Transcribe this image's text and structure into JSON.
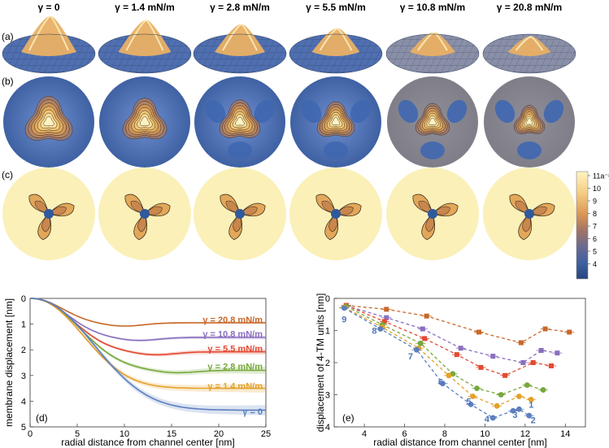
{
  "columns": [
    "γ = 0",
    "γ = 1.4 mN/m",
    "γ = 2.8 mN/m",
    "γ = 5.5 mN/m",
    "γ = 10.8 mN/m",
    "γ = 20.8 mN/m"
  ],
  "row_labels": [
    "(a)",
    "(b)",
    "(c)"
  ],
  "colorbar": {
    "ticks": [
      "11a⁻²",
      "10",
      "9",
      "8",
      "7",
      "6",
      "5",
      "4"
    ],
    "colors": [
      "#fff4c4",
      "#fbe3a4",
      "#f5cd82",
      "#ebb066",
      "#d99653",
      "#b07a5e",
      "#7c6f86",
      "#53699e",
      "#3b5f9f",
      "#2a4f8e"
    ]
  },
  "chart_data": [
    {
      "type": "line",
      "panel": "(d)",
      "xlabel": "radial distance from channel center  [nm]",
      "ylabel": "membrane displacement  [nm]",
      "xlim": [
        0,
        25
      ],
      "ylim": [
        5,
        0
      ],
      "xticks": [
        "0",
        "5",
        "10",
        "15",
        "20",
        "25"
      ],
      "yticks": [
        "0",
        "1",
        "2",
        "3",
        "4",
        "5"
      ],
      "series": [
        {
          "name": "γ = 20.8 mN/m",
          "color": "#c8682a",
          "r": 4.5,
          "plateau": 0.95,
          "bump": 0.13
        },
        {
          "name": "γ = 10.8 mN/m",
          "color": "#8a6fbf",
          "r": 5.2,
          "plateau": 1.52,
          "bump": 0.12
        },
        {
          "name": "γ = 5.5 mN/m",
          "color": "#e24a33",
          "r": 6.0,
          "plateau": 2.08,
          "bump": 0.12
        },
        {
          "name": "γ = 2.8 mN/m",
          "color": "#76a83a",
          "r": 7.0,
          "plateau": 2.8,
          "bump": 0.1
        },
        {
          "name": "γ = 1.4 mN/m",
          "color": "#e3a128",
          "r": 7.5,
          "plateau": 3.5,
          "bump": 0.0
        },
        {
          "name": "γ = 0",
          "color": "#5b7fbf",
          "r": 9.0,
          "plateau": 4.35,
          "bump": 0.0
        }
      ]
    },
    {
      "type": "scatter",
      "panel": "(e)",
      "xlabel": "radial distance from channel center  [nm]",
      "ylabel": "displacement of 4-TM units  [nm]",
      "xlim": [
        2.5,
        15
      ],
      "ylim": [
        4,
        0
      ],
      "xticks": [
        "4",
        "6",
        "8",
        "10",
        "12",
        "14"
      ],
      "yticks": [
        "0",
        "1",
        "2",
        "3",
        "4"
      ],
      "point_labels": [
        {
          "text": "9",
          "x": 3.0,
          "y": 0.65
        },
        {
          "text": "8",
          "x": 4.5,
          "y": 1.0
        },
        {
          "text": "7",
          "x": 6.3,
          "y": 1.8
        },
        {
          "text": "6",
          "x": 7.8,
          "y": 2.6
        },
        {
          "text": "5",
          "x": 9.2,
          "y": 3.2
        },
        {
          "text": "4",
          "x": 10.1,
          "y": 3.75
        },
        {
          "text": "3",
          "x": 11.5,
          "y": 3.62
        },
        {
          "text": "2",
          "x": 12.4,
          "y": 3.78
        },
        {
          "text": "1",
          "x": 12.3,
          "y": 3.3
        }
      ],
      "series": [
        {
          "name": "γ = 20.8 mN/m",
          "color": "#c8682a",
          "marker": "square",
          "x": [
            3.1,
            5.1,
            7.1,
            9.7,
            11.8,
            13.0,
            14.2
          ],
          "y": [
            0.22,
            0.34,
            0.55,
            1.05,
            1.38,
            0.95,
            1.05
          ]
        },
        {
          "name": "γ = 10.8 mN/m",
          "color": "#8a6fbf",
          "marker": "square",
          "x": [
            3.1,
            5.1,
            6.9,
            8.8,
            10.4,
            11.9,
            12.8,
            13.6
          ],
          "y": [
            0.23,
            0.6,
            0.95,
            1.55,
            1.8,
            2.0,
            1.62,
            1.7
          ]
        },
        {
          "name": "γ = 5.5 mN/m",
          "color": "#e24a33",
          "marker": "square",
          "x": [
            3.1,
            5.0,
            7.0,
            8.6,
            9.8,
            11.0,
            12.4,
            13.3
          ],
          "y": [
            0.22,
            0.72,
            1.25,
            1.75,
            2.15,
            2.4,
            2.0,
            2.1
          ]
        },
        {
          "name": "γ = 2.8 mN/m",
          "color": "#76a83a",
          "marker": "circle",
          "x": [
            3.1,
            4.9,
            6.8,
            8.4,
            9.6,
            10.8,
            12.1,
            12.9
          ],
          "y": [
            0.25,
            0.82,
            1.4,
            2.35,
            2.8,
            3.0,
            2.7,
            2.85
          ]
        },
        {
          "name": "γ = 1.4 mN/m",
          "color": "#e3a128",
          "marker": "circle",
          "x": [
            3.0,
            4.9,
            6.7,
            8.2,
            9.4,
            10.6,
            11.7,
            12.3
          ],
          "y": [
            0.28,
            0.9,
            1.55,
            2.4,
            3.05,
            3.35,
            3.05,
            3.15
          ]
        },
        {
          "name": "γ = 0",
          "color": "#5b7fbf",
          "marker": "circle",
          "x": [
            3.0,
            4.8,
            6.6,
            7.9,
            9.3,
            10.4,
            11.4,
            11.7,
            12.2
          ],
          "y": [
            0.3,
            0.95,
            1.6,
            2.65,
            3.3,
            3.72,
            3.5,
            3.45,
            3.65
          ]
        }
      ]
    }
  ]
}
